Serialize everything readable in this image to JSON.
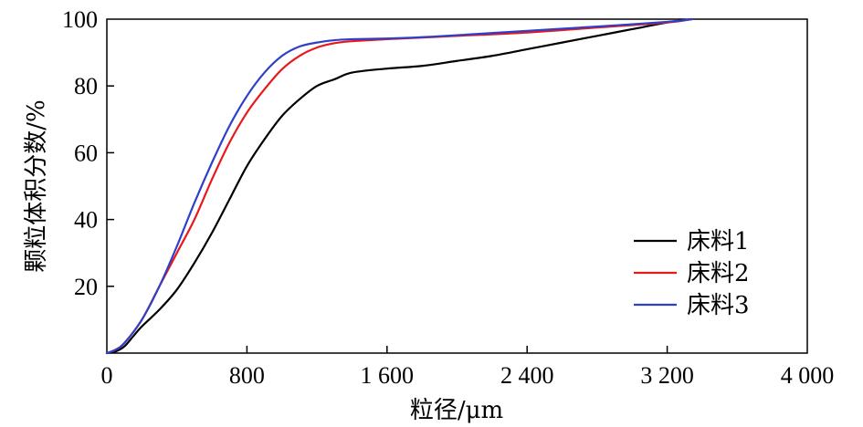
{
  "chart_data": {
    "type": "line",
    "xlabel": "粒径/μm",
    "ylabel": "颗粒体积分数/%",
    "xlim": [
      0,
      4000
    ],
    "ylim": [
      0,
      100
    ],
    "x_ticks": [
      {
        "value": 0,
        "label": "0"
      },
      {
        "value": 800,
        "label": "800"
      },
      {
        "value": 1600,
        "label": "1 600"
      },
      {
        "value": 2400,
        "label": "2 400"
      },
      {
        "value": 3200,
        "label": "3 200"
      },
      {
        "value": 4000,
        "label": "4 000"
      }
    ],
    "y_ticks": [
      {
        "value": 20,
        "label": "20"
      },
      {
        "value": 40,
        "label": "40"
      },
      {
        "value": 60,
        "label": "60"
      },
      {
        "value": 80,
        "label": "80"
      },
      {
        "value": 100,
        "label": "100"
      }
    ],
    "grid": false,
    "legend_position": "bottom-right",
    "series": [
      {
        "name": "床料1",
        "color": "#000000",
        "points": [
          [
            0,
            0
          ],
          [
            50,
            0.5
          ],
          [
            100,
            2
          ],
          [
            150,
            5
          ],
          [
            200,
            8
          ],
          [
            300,
            13
          ],
          [
            400,
            19
          ],
          [
            500,
            27
          ],
          [
            600,
            36
          ],
          [
            700,
            46
          ],
          [
            800,
            56
          ],
          [
            900,
            64
          ],
          [
            1000,
            71
          ],
          [
            1100,
            76
          ],
          [
            1200,
            80
          ],
          [
            1300,
            82
          ],
          [
            1400,
            84
          ],
          [
            1600,
            85.2
          ],
          [
            1800,
            86
          ],
          [
            2000,
            87.5
          ],
          [
            2200,
            89
          ],
          [
            2400,
            91
          ],
          [
            2600,
            93
          ],
          [
            2800,
            95
          ],
          [
            3000,
            97
          ],
          [
            3200,
            99
          ],
          [
            3340,
            100
          ]
        ]
      },
      {
        "name": "床料2",
        "color": "#e8191c",
        "points": [
          [
            0,
            0
          ],
          [
            50,
            1
          ],
          [
            100,
            3
          ],
          [
            200,
            10
          ],
          [
            300,
            20
          ],
          [
            400,
            30
          ],
          [
            500,
            40
          ],
          [
            600,
            52
          ],
          [
            700,
            63
          ],
          [
            800,
            72
          ],
          [
            900,
            79
          ],
          [
            1000,
            85
          ],
          [
            1100,
            89
          ],
          [
            1200,
            91.5
          ],
          [
            1300,
            92.8
          ],
          [
            1400,
            93.4
          ],
          [
            1600,
            94
          ],
          [
            1800,
            94.5
          ],
          [
            2000,
            95
          ],
          [
            2400,
            96
          ],
          [
            2800,
            97.5
          ],
          [
            3200,
            99
          ],
          [
            3340,
            100
          ]
        ]
      },
      {
        "name": "床料3",
        "color": "#2e3fc9",
        "points": [
          [
            0,
            0
          ],
          [
            50,
            1
          ],
          [
            100,
            3
          ],
          [
            200,
            10
          ],
          [
            300,
            20
          ],
          [
            400,
            32
          ],
          [
            500,
            45
          ],
          [
            600,
            57
          ],
          [
            700,
            68
          ],
          [
            800,
            77
          ],
          [
            900,
            84
          ],
          [
            1000,
            89
          ],
          [
            1100,
            91.8
          ],
          [
            1200,
            93
          ],
          [
            1300,
            93.7
          ],
          [
            1400,
            94
          ],
          [
            1600,
            94.2
          ],
          [
            1800,
            94.6
          ],
          [
            2000,
            95.2
          ],
          [
            2400,
            96.5
          ],
          [
            2800,
            97.8
          ],
          [
            3200,
            99.2
          ],
          [
            3340,
            100
          ]
        ]
      }
    ]
  }
}
